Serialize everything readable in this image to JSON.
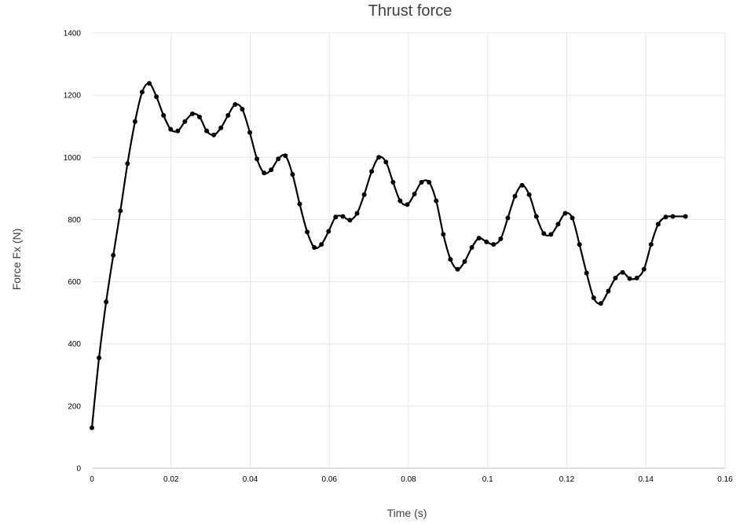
{
  "chart_data": {
    "type": "scatter",
    "title": "Thrust force",
    "xlabel": "Time (s)",
    "ylabel": "Force Fx  (N)",
    "xlim": [
      0,
      0.16
    ],
    "ylim": [
      0,
      1400
    ],
    "x_ticks": [
      "0",
      "0.02",
      "0.04",
      "0.06",
      "0.08",
      "0.1",
      "0.12",
      "0.14",
      "0.16"
    ],
    "x_tick_values": [
      0,
      0.02,
      0.04,
      0.06,
      0.08,
      0.1,
      0.12,
      0.14,
      0.16
    ],
    "y_ticks": [
      "0",
      "200",
      "400",
      "600",
      "800",
      "1000",
      "1200",
      "1400"
    ],
    "y_tick_values": [
      0,
      200,
      400,
      600,
      800,
      1000,
      1200,
      1400
    ],
    "grid": true,
    "legend": "none",
    "line_color": "#000000",
    "series": [
      {
        "x": [
          0,
          0.0018,
          0.0036,
          0.0054,
          0.0072,
          0.009,
          0.0109,
          0.0127,
          0.0145,
          0.0163,
          0.0181,
          0.0199,
          0.0217,
          0.0235,
          0.0254,
          0.0272,
          0.029,
          0.0308,
          0.0326,
          0.0344,
          0.0362,
          0.038,
          0.0399,
          0.0417,
          0.0435,
          0.0453,
          0.0471,
          0.0489,
          0.0507,
          0.0525,
          0.0544,
          0.0562,
          0.058,
          0.0598,
          0.0616,
          0.0634,
          0.0652,
          0.067,
          0.0688,
          0.0707,
          0.0725,
          0.0743,
          0.0761,
          0.0779,
          0.0797,
          0.0815,
          0.0833,
          0.0852,
          0.087,
          0.0888,
          0.0906,
          0.0924,
          0.0942,
          0.096,
          0.0978,
          0.0997,
          0.1015,
          0.1033,
          0.1051,
          0.1069,
          0.1087,
          0.1105,
          0.1123,
          0.1142,
          0.116,
          0.1178,
          0.1196,
          0.1214,
          0.1232,
          0.125,
          0.1268,
          0.1286,
          0.1305,
          0.1323,
          0.1341,
          0.1359,
          0.1377,
          0.1395,
          0.1413,
          0.1431,
          0.145,
          0.1468,
          0.15
        ],
        "y": [
          130,
          355,
          535,
          685,
          828,
          980,
          1115,
          1210,
          1238,
          1195,
          1135,
          1090,
          1085,
          1115,
          1140,
          1130,
          1085,
          1072,
          1095,
          1135,
          1170,
          1155,
          1080,
          995,
          950,
          960,
          995,
          1005,
          945,
          850,
          760,
          710,
          720,
          762,
          808,
          810,
          798,
          820,
          880,
          955,
          1000,
          985,
          920,
          860,
          848,
          882,
          920,
          920,
          860,
          752,
          672,
          640,
          665,
          710,
          740,
          728,
          720,
          738,
          805,
          875,
          910,
          880,
          810,
          755,
          752,
          785,
          820,
          805,
          720,
          628,
          548,
          530,
          570,
          612,
          630,
          610,
          612,
          640,
          720,
          785,
          808,
          810,
          810
        ]
      }
    ]
  }
}
